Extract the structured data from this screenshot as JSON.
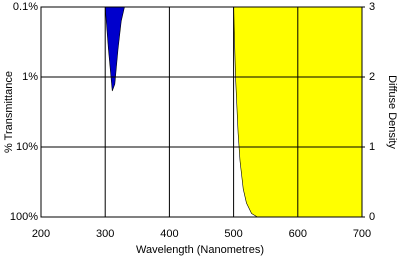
{
  "chart_data": {
    "type": "area",
    "x_label": "Wavelength (Nanometres)",
    "y_label": "% Transmittance",
    "y2_label": "Diffuse Density",
    "xlim": [
      200,
      700
    ],
    "xticks": [
      200,
      300,
      400,
      500,
      600,
      700
    ],
    "ylim": [
      0,
      3
    ],
    "yticks": [
      {
        "value": 0,
        "label": "100%"
      },
      {
        "value": 1,
        "label": "10%"
      },
      {
        "value": 2,
        "label": "1%"
      },
      {
        "value": 3,
        "label": "0.1%"
      }
    ],
    "y2lim": [
      0,
      3
    ],
    "y2ticks": [
      0,
      1,
      2,
      3
    ],
    "grid": true,
    "series": [
      {
        "color": "#0000cc",
        "x": [
          300,
          305,
          311,
          315,
          320,
          325,
          330
        ],
        "values": [
          3,
          2.4,
          1.8,
          1.9,
          2.4,
          2.8,
          3
        ]
      },
      {
        "color": "#ffff00",
        "x": [
          500,
          503,
          507,
          510,
          515,
          520,
          528,
          537,
          700
        ],
        "values": [
          3,
          2,
          1.2,
          0.8,
          0.4,
          0.2,
          0.05,
          0,
          0
        ]
      }
    ]
  }
}
